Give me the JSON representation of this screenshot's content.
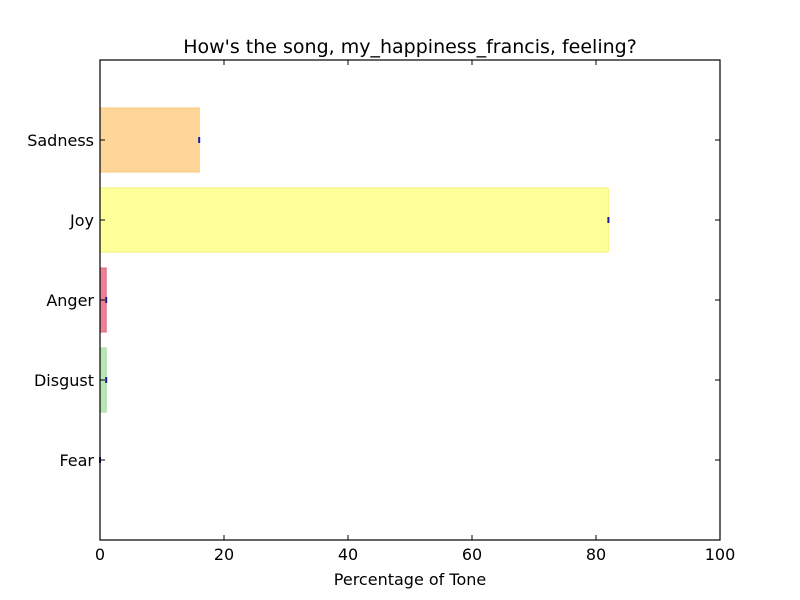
{
  "chart_data": {
    "type": "bar",
    "orientation": "horizontal",
    "title": "How's the song, my_happiness_francis, feeling?",
    "xlabel": "Percentage of Tone",
    "ylabel": "",
    "xlim": [
      0,
      100
    ],
    "xticks": [
      0,
      20,
      40,
      60,
      80,
      100
    ],
    "grid": false,
    "categories": [
      "Fear",
      "Disgust",
      "Anger",
      "Joy",
      "Sadness"
    ],
    "values": [
      0,
      1,
      1,
      82,
      16
    ],
    "colors": [
      "#c9a4e6",
      "#b7e8b4",
      "#ea8195",
      "#ffff99",
      "#ffd699"
    ],
    "edge_colors": [
      "#b48ad6",
      "#a2dd9f",
      "#e06a82",
      "#f7f27a",
      "#f8c878"
    ],
    "error_marker_color": "#1a1aa6"
  }
}
